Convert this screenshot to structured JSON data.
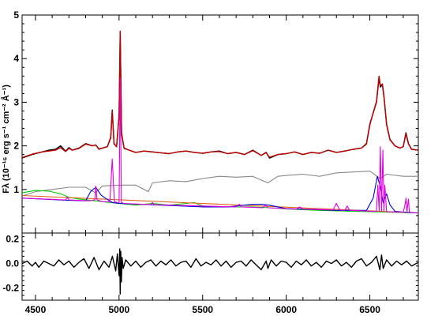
{
  "chart_data": [
    {
      "type": "line",
      "panel": "spectrum",
      "ylabel": "Fλ (10⁻¹⁶ erg s⁻¹ cm⁻² Å⁻¹)",
      "xlim": [
        4420,
        6790
      ],
      "ylim": [
        0,
        5
      ],
      "x_ticks": [
        4500,
        5000,
        5500,
        6000,
        6500
      ],
      "y_ticks": [
        1,
        2,
        3,
        4,
        5
      ],
      "grid": false,
      "series": [
        {
          "color": "#000000",
          "description_of_role": "observed",
          "x": [
            4420,
            4480,
            4540,
            4580,
            4620,
            4650,
            4680,
            4700,
            4720,
            4760,
            4800,
            4840,
            4860,
            4880,
            4900,
            4930,
            4950,
            4959,
            4970,
            4985,
            5000,
            5007,
            5015,
            5030,
            5060,
            5100,
            5150,
            5200,
            5250,
            5300,
            5350,
            5400,
            5450,
            5500,
            5550,
            5600,
            5650,
            5700,
            5750,
            5800,
            5850,
            5880,
            5900,
            5950,
            6000,
            6050,
            6100,
            6150,
            6200,
            6250,
            6300,
            6350,
            6400,
            6450,
            6480,
            6500,
            6520,
            6540,
            6555,
            6563,
            6575,
            6585,
            6600,
            6620,
            6650,
            6680,
            6700,
            6716,
            6731,
            6750,
            6790
          ],
          "y": [
            1.72,
            1.8,
            1.86,
            1.9,
            1.92,
            2.0,
            1.88,
            1.96,
            1.9,
            1.95,
            2.05,
            2.0,
            2.02,
            1.92,
            1.95,
            1.98,
            2.2,
            2.82,
            2.05,
            1.98,
            2.7,
            4.62,
            2.3,
            1.95,
            1.9,
            1.85,
            1.88,
            1.86,
            1.84,
            1.82,
            1.86,
            1.88,
            1.85,
            1.83,
            1.86,
            1.88,
            1.82,
            1.85,
            1.8,
            1.9,
            1.78,
            1.85,
            1.72,
            1.8,
            1.82,
            1.86,
            1.8,
            1.85,
            1.83,
            1.9,
            1.85,
            1.88,
            1.92,
            1.95,
            2.05,
            2.5,
            2.75,
            3.0,
            3.55,
            3.35,
            3.4,
            3.1,
            2.5,
            2.15,
            2.0,
            1.95,
            1.98,
            2.3,
            2.05,
            1.92,
            1.9
          ]
        },
        {
          "color": "#c00000",
          "description_of_role": "model",
          "x": [
            4420,
            4480,
            4540,
            4580,
            4620,
            4650,
            4680,
            4700,
            4720,
            4760,
            4800,
            4840,
            4860,
            4880,
            4900,
            4930,
            4950,
            4959,
            4970,
            4985,
            5000,
            5007,
            5015,
            5030,
            5060,
            5100,
            5150,
            5200,
            5250,
            5300,
            5350,
            5400,
            5450,
            5500,
            5550,
            5600,
            5650,
            5700,
            5750,
            5800,
            5850,
            5880,
            5900,
            5950,
            6000,
            6050,
            6100,
            6150,
            6200,
            6250,
            6300,
            6350,
            6400,
            6450,
            6480,
            6500,
            6520,
            6540,
            6555,
            6563,
            6575,
            6585,
            6600,
            6620,
            6650,
            6680,
            6700,
            6716,
            6731,
            6750,
            6790
          ],
          "y": [
            1.73,
            1.81,
            1.86,
            1.88,
            1.9,
            1.96,
            1.87,
            1.94,
            1.9,
            1.94,
            2.04,
            2.0,
            2.02,
            1.93,
            1.95,
            1.98,
            2.18,
            2.8,
            2.04,
            1.98,
            2.68,
            4.63,
            2.28,
            1.94,
            1.9,
            1.85,
            1.88,
            1.86,
            1.84,
            1.82,
            1.86,
            1.88,
            1.85,
            1.83,
            1.86,
            1.87,
            1.82,
            1.85,
            1.8,
            1.89,
            1.78,
            1.84,
            1.74,
            1.8,
            1.82,
            1.86,
            1.8,
            1.85,
            1.83,
            1.9,
            1.85,
            1.88,
            1.92,
            1.95,
            2.04,
            2.48,
            2.76,
            3.02,
            3.6,
            3.38,
            3.42,
            3.12,
            2.48,
            2.14,
            2.0,
            1.95,
            1.98,
            2.28,
            2.04,
            1.92,
            1.9
          ]
        },
        {
          "color": "#888888",
          "description_of_role": "stellar",
          "x": [
            4420,
            4500,
            4600,
            4700,
            4800,
            4860,
            4900,
            5000,
            5100,
            5175,
            5200,
            5300,
            5400,
            5500,
            5600,
            5700,
            5800,
            5890,
            5950,
            6000,
            6100,
            6200,
            6300,
            6400,
            6500,
            6563,
            6600,
            6700,
            6790
          ],
          "y": [
            0.85,
            0.95,
            1.0,
            1.05,
            1.05,
            0.92,
            1.08,
            1.1,
            1.1,
            0.95,
            1.15,
            1.2,
            1.18,
            1.25,
            1.3,
            1.28,
            1.3,
            1.15,
            1.3,
            1.32,
            1.35,
            1.3,
            1.38,
            1.4,
            1.42,
            1.25,
            1.35,
            1.3,
            1.3
          ]
        },
        {
          "color": "#00d000",
          "description_of_role": "feII",
          "x": [
            4420,
            4500,
            4580,
            4650,
            4700,
            4760,
            4830,
            4900,
            4950,
            5000,
            5100,
            5150,
            5200,
            5250,
            5300,
            5400,
            5450,
            5500,
            5600,
            5700,
            5800,
            5900,
            6000,
            6200,
            6400,
            6600,
            6790
          ],
          "y": [
            0.92,
            0.98,
            0.96,
            0.9,
            0.82,
            0.78,
            0.75,
            0.72,
            0.7,
            0.68,
            0.64,
            0.66,
            0.68,
            0.66,
            0.64,
            0.68,
            0.7,
            0.62,
            0.6,
            0.6,
            0.6,
            0.58,
            0.55,
            0.52,
            0.5,
            0.48,
            0.46
          ]
        },
        {
          "color": "#e0601a",
          "description_of_role": "powerlaw",
          "x": [
            4420,
            6790
          ],
          "y": [
            0.86,
            0.46
          ]
        },
        {
          "color": "#0000d0",
          "description_of_role": "broad",
          "x": [
            4420,
            4700,
            4800,
            4830,
            4861,
            4890,
            4910,
            4960,
            5000,
            5500,
            5650,
            5750,
            5800,
            5850,
            5900,
            5950,
            6000,
            6300,
            6480,
            6520,
            6545,
            6563,
            6580,
            6600,
            6620,
            6650,
            6700,
            6790
          ],
          "y": [
            0.8,
            0.75,
            0.74,
            0.95,
            1.05,
            0.88,
            0.82,
            0.7,
            0.68,
            0.6,
            0.6,
            0.64,
            0.66,
            0.66,
            0.64,
            0.6,
            0.56,
            0.52,
            0.52,
            0.8,
            1.3,
            1.05,
            0.7,
            0.9,
            0.65,
            0.5,
            0.48,
            0.46
          ]
        },
        {
          "color": "#e000e0",
          "description_of_role": "narrow",
          "x": [
            4420,
            4680,
            4690,
            4700,
            4820,
            4855,
            4861,
            4868,
            4900,
            4945,
            4959,
            4972,
            4990,
            5000,
            5007,
            5014,
            5030,
            5190,
            5200,
            5210,
            5700,
            5720,
            5730,
            5860,
            5876,
            5890,
            6060,
            6080,
            6100,
            6280,
            6300,
            6320,
            6350,
            6364,
            6380,
            6520,
            6540,
            6548,
            6556,
            6563,
            6570,
            6578,
            6584,
            6590,
            6600,
            6700,
            6712,
            6716,
            6722,
            6728,
            6731,
            6736,
            6750,
            6790
          ],
          "y": [
            0.8,
            0.76,
            0.82,
            0.76,
            0.74,
            0.76,
            1.08,
            0.76,
            0.72,
            0.72,
            1.7,
            0.72,
            0.7,
            0.7,
            3.55,
            0.7,
            0.68,
            0.65,
            0.7,
            0.65,
            0.6,
            0.66,
            0.6,
            0.58,
            0.64,
            0.58,
            0.55,
            0.6,
            0.55,
            0.53,
            0.68,
            0.53,
            0.52,
            0.62,
            0.52,
            0.5,
            0.5,
            1.1,
            0.5,
            1.98,
            0.5,
            1.9,
            0.5,
            1.1,
            0.49,
            0.48,
            0.68,
            0.8,
            0.48,
            0.7,
            0.78,
            0.48,
            0.47,
            0.46
          ]
        }
      ]
    },
    {
      "type": "line",
      "panel": "residual",
      "xlabel": "",
      "xlim": [
        4420,
        6790
      ],
      "ylim": [
        -0.3,
        0.25
      ],
      "x_ticks": [
        4500,
        5000,
        5500,
        6000,
        6500
      ],
      "y_ticks": [
        -0.2,
        0.0,
        0.2
      ],
      "y_tick_labels": [
        "-0.2",
        "0.0",
        "0.2"
      ],
      "grid": false,
      "series": [
        {
          "color": "#000000",
          "description_of_role": "residual",
          "x": [
            4420,
            4450,
            4480,
            4500,
            4520,
            4550,
            4580,
            4610,
            4640,
            4670,
            4700,
            4730,
            4760,
            4790,
            4820,
            4850,
            4880,
            4910,
            4940,
            4960,
            4980,
            4990,
            5000,
            5004,
            5007,
            5010,
            5014,
            5018,
            5025,
            5040,
            5070,
            5100,
            5130,
            5160,
            5190,
            5220,
            5250,
            5280,
            5310,
            5340,
            5370,
            5400,
            5430,
            5460,
            5490,
            5520,
            5550,
            5580,
            5610,
            5640,
            5670,
            5700,
            5730,
            5760,
            5790,
            5820,
            5850,
            5880,
            5890,
            5910,
            5940,
            5970,
            6000,
            6030,
            6060,
            6090,
            6120,
            6150,
            6180,
            6210,
            6240,
            6270,
            6300,
            6330,
            6360,
            6390,
            6420,
            6450,
            6480,
            6510,
            6540,
            6560,
            6570,
            6580,
            6600,
            6630,
            6660,
            6690,
            6720,
            6750,
            6790
          ],
          "y": [
            0.0,
            0.02,
            -0.02,
            0.01,
            -0.03,
            0.02,
            0.0,
            -0.02,
            0.03,
            -0.01,
            0.02,
            -0.03,
            0.01,
            0.04,
            -0.04,
            0.05,
            -0.05,
            0.02,
            -0.03,
            0.06,
            -0.06,
            0.08,
            -0.1,
            0.12,
            -0.25,
            0.1,
            -0.15,
            0.05,
            -0.04,
            0.03,
            -0.02,
            0.02,
            -0.03,
            0.01,
            0.03,
            -0.02,
            0.02,
            -0.01,
            0.03,
            -0.02,
            0.01,
            0.02,
            -0.03,
            0.04,
            -0.02,
            0.01,
            -0.01,
            0.03,
            -0.02,
            0.02,
            -0.03,
            0.01,
            0.02,
            -0.02,
            0.03,
            -0.01,
            -0.05,
            0.02,
            -0.04,
            0.03,
            -0.02,
            0.02,
            0.01,
            -0.03,
            0.02,
            -0.01,
            0.03,
            -0.02,
            0.01,
            -0.03,
            0.02,
            0.0,
            0.03,
            -0.02,
            0.01,
            -0.03,
            0.02,
            0.04,
            -0.02,
            0.01,
            0.06,
            -0.05,
            0.07,
            -0.04,
            0.03,
            -0.02,
            0.02,
            -0.01,
            0.02,
            -0.02,
            0.01
          ]
        }
      ]
    }
  ]
}
